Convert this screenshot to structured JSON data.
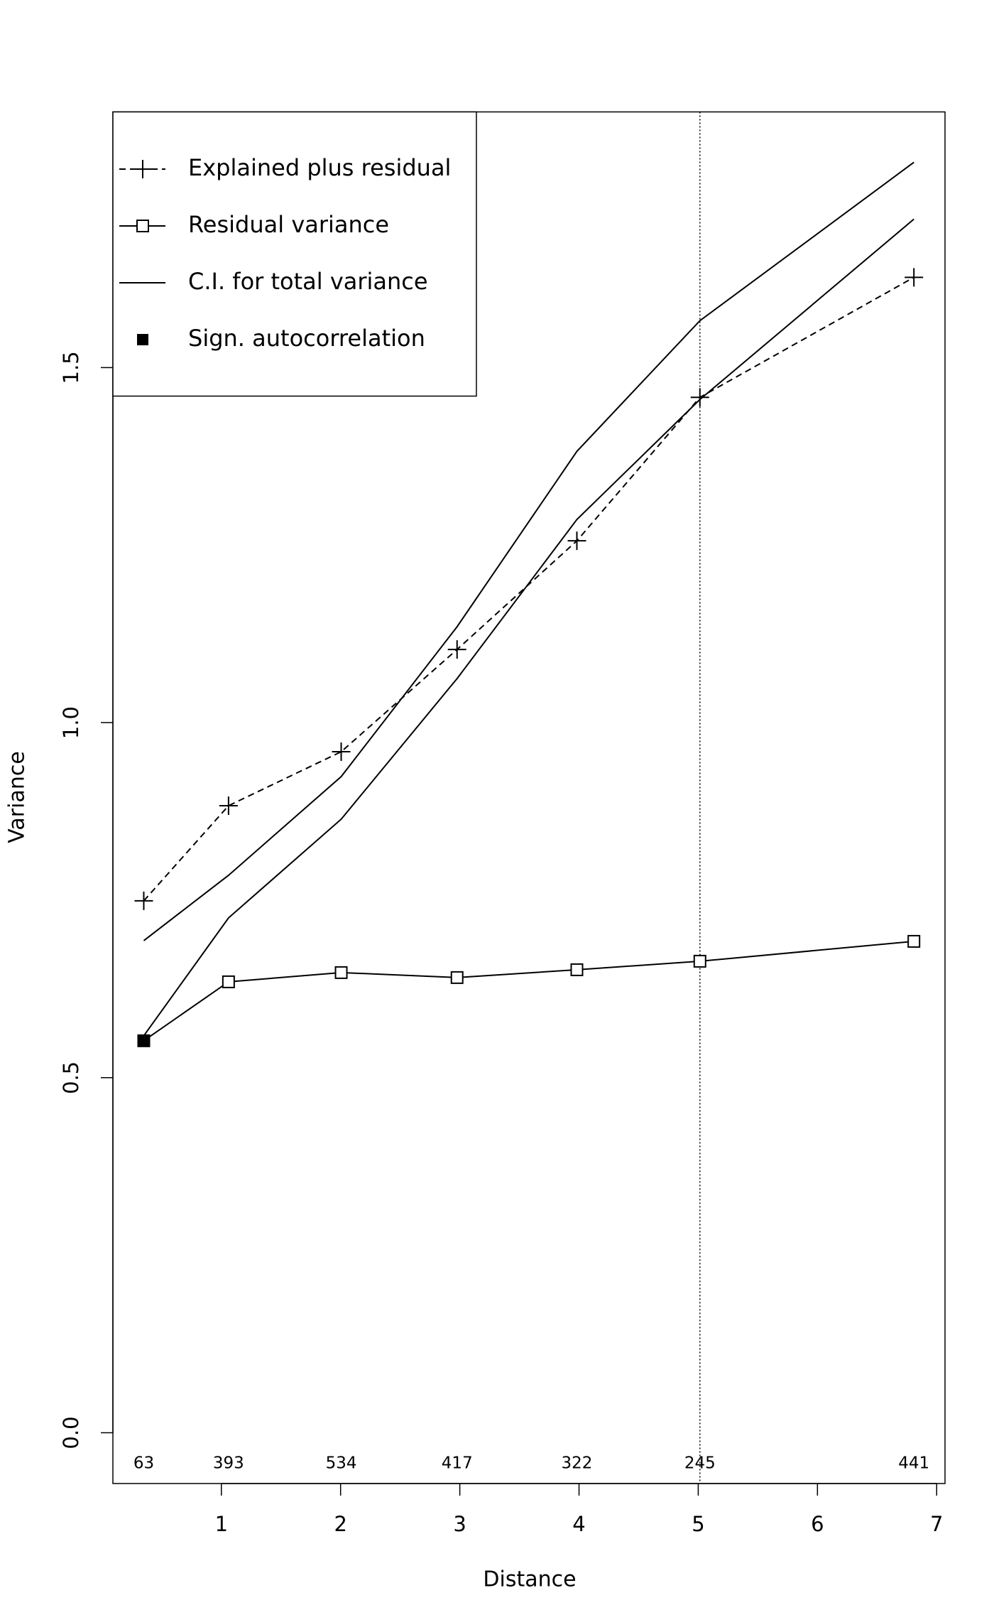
{
  "chart_data": {
    "type": "line",
    "x_label": "Distance",
    "y_label": "Variance",
    "x": [
      0.349,
      1.06,
      2.005,
      2.977,
      3.982,
      5.014,
      6.809
    ],
    "counts": [
      "63",
      "393",
      "534",
      "417",
      "322",
      "245",
      "441"
    ],
    "series": [
      {
        "name": "Explained plus residual",
        "color": "#000000",
        "dash": true,
        "marker": "plus",
        "values": [
          0.749,
          0.883,
          0.959,
          1.103,
          1.256,
          1.458,
          1.627
        ]
      },
      {
        "name": "Residual variance",
        "color": "#000000",
        "dash": false,
        "marker": "square",
        "values": [
          0.552,
          0.635,
          0.648,
          0.641,
          0.652,
          0.664,
          0.692
        ]
      }
    ],
    "ci": {
      "name": "C.I. for total variance",
      "color": "#000000",
      "upper": [
        0.693,
        0.785,
        0.924,
        1.135,
        1.382,
        1.566,
        1.789
      ],
      "lower": [
        0.559,
        0.725,
        0.864,
        1.062,
        1.286,
        1.455,
        1.709
      ]
    },
    "sign_autocorrelation": {
      "name": "Sign. autocorrelation",
      "flags": [
        true,
        false,
        false,
        false,
        false,
        false,
        false
      ]
    },
    "vline": 5.014,
    "xlim": [
      0.09,
      7.07
    ],
    "ylim": [
      -0.0715,
      1.86
    ],
    "xticks": [
      1,
      2,
      3,
      4,
      5,
      6,
      7
    ],
    "yticks": [
      {
        "value": 0,
        "label": "0.0"
      },
      0.5,
      {
        "value": 1,
        "label": "1.0"
      },
      {
        "value": 1.5,
        "label": "1.5"
      }
    ]
  }
}
